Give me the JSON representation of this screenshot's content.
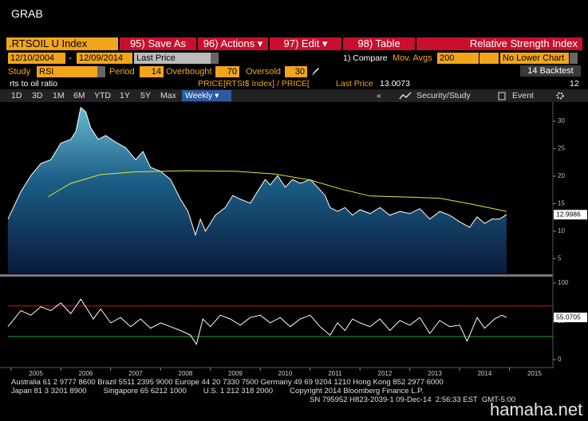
{
  "header": {
    "title": "GRAB",
    "security": ".RTSOIL U Index",
    "buttons": [
      "95) Save As",
      "96) Actions ▾",
      "97) Edit ▾",
      "98) Table"
    ],
    "study_title": "Relative Strength Index",
    "start_date": "12/10/2004",
    "date_sep": "-",
    "end_date": "12/09/2014",
    "price_field": "Last Price",
    "compare": "1) Compare",
    "mov_avgs_label": "Mov. Avgs",
    "mov_avgs": 200,
    "lower_chart": "No Lower Chart",
    "study_label": "Study",
    "study": "RSI",
    "period_label": "Period",
    "period": 14,
    "overbought_label": "Overbought",
    "overbought": 70,
    "oversold_label": "Oversold",
    "oversold": 30,
    "backtest": "14 Backtest",
    "description": "rts to oil ratio",
    "formula": "PRICE[RTSI$ Index] / PRICE[",
    "last_price_label": "Last Price",
    "last_price": 13.0073,
    "count": 12
  },
  "toolbar": {
    "ranges": [
      "1D",
      "3D",
      "1M",
      "6M",
      "YTD",
      "1Y",
      "5Y",
      "Max"
    ],
    "frequency": "Weekly ▾",
    "collapse": "«",
    "security_study": "Security/Study",
    "event": "Event"
  },
  "chart_data": [
    {
      "type": "line",
      "xlim": [
        2004.94,
        2015.87
      ],
      "ylim": [
        2.3,
        33.2
      ],
      "yticks": [
        5,
        10,
        15,
        20,
        25,
        30
      ],
      "last_label": 12.9986,
      "series": [
        {
          "color": "#ffffff",
          "fill_area": true,
          "x": [
            2004.94,
            2005.2,
            2005.4,
            2005.6,
            2005.8,
            2006.0,
            2006.2,
            2006.3,
            2006.4,
            2006.5,
            2006.6,
            2006.75,
            2006.9,
            2007.1,
            2007.3,
            2007.5,
            2007.65,
            2007.8,
            2008.0,
            2008.2,
            2008.4,
            2008.55,
            2008.7,
            2008.8,
            2008.9,
            2009.1,
            2009.3,
            2009.45,
            2009.6,
            2009.8,
            2010.0,
            2010.1,
            2010.2,
            2010.35,
            2010.5,
            2010.65,
            2010.8,
            2011.0,
            2011.15,
            2011.3,
            2011.4,
            2011.55,
            2011.7,
            2011.85,
            2012.0,
            2012.2,
            2012.4,
            2012.6,
            2012.8,
            2013.0,
            2013.2,
            2013.4,
            2013.6,
            2013.8,
            2014.0,
            2014.2,
            2014.35,
            2014.5,
            2014.65,
            2014.8,
            2014.94
          ],
          "values": [
            12.2,
            17.2,
            20.1,
            22.3,
            23,
            26,
            26.7,
            28.1,
            32.5,
            31.7,
            28.8,
            26.7,
            27.4,
            26.2,
            25.2,
            23,
            24.5,
            21.6,
            20.9,
            19.4,
            15.8,
            13.6,
            9.3,
            12.2,
            10,
            12.9,
            14.3,
            16.5,
            15.8,
            15.1,
            18,
            19.4,
            18.4,
            20.1,
            18,
            19.4,
            18.7,
            19.4,
            18,
            16.5,
            14.3,
            13.6,
            14.3,
            12.9,
            13.9,
            13.2,
            14.3,
            12.9,
            13.6,
            13.2,
            14.1,
            12.2,
            13.6,
            12.9,
            11.7,
            10.7,
            12.6,
            11.4,
            12.2,
            12.2,
            13
          ]
        },
        {
          "color": "#e6e62e",
          "fill_area": false,
          "x": [
            2005.75,
            2006.2,
            2006.8,
            2007.5,
            2008.5,
            2009.5,
            2010.3,
            2011.0,
            2011.6,
            2012.2,
            2013.0,
            2013.6,
            2014.2,
            2014.94
          ],
          "values": [
            16.3,
            18.7,
            20.3,
            20.8,
            21,
            20.9,
            20.4,
            19.3,
            17.7,
            16.4,
            16.2,
            16,
            15,
            13.6
          ]
        }
      ]
    },
    {
      "type": "line",
      "xlim": [
        2004.94,
        2015.87
      ],
      "ylim": [
        -9.4,
        107.3
      ],
      "yticks": [
        0,
        50,
        100
      ],
      "last_label": 55.0705,
      "xticks": [
        2005,
        2006,
        2007,
        2008,
        2009,
        2010,
        2011,
        2012,
        2013,
        2014,
        2015
      ],
      "series": [
        {
          "color": "#ffffff",
          "fill_area": false,
          "x": [
            2004.94,
            2005.2,
            2005.4,
            2005.6,
            2005.8,
            2006.0,
            2006.2,
            2006.4,
            2006.5,
            2006.65,
            2006.8,
            2007.0,
            2007.2,
            2007.4,
            2007.6,
            2007.8,
            2008.0,
            2008.2,
            2008.4,
            2008.6,
            2008.72,
            2008.85,
            2009.0,
            2009.2,
            2009.4,
            2009.6,
            2009.8,
            2010.0,
            2010.2,
            2010.4,
            2010.6,
            2010.8,
            2011.0,
            2011.2,
            2011.4,
            2011.55,
            2011.7,
            2011.85,
            2012.0,
            2012.2,
            2012.4,
            2012.6,
            2012.8,
            2013.0,
            2013.2,
            2013.4,
            2013.6,
            2013.8,
            2014.0,
            2014.15,
            2014.35,
            2014.5,
            2014.7,
            2014.85,
            2014.94
          ],
          "values": [
            43,
            64,
            58,
            69,
            64,
            74,
            60,
            79,
            69,
            53,
            66,
            48,
            55,
            43,
            53,
            41,
            48,
            43,
            38,
            32,
            20,
            53,
            43,
            58,
            53,
            45,
            55,
            58,
            48,
            55,
            43,
            53,
            58,
            43,
            32,
            48,
            38,
            53,
            48,
            43,
            53,
            38,
            51,
            45,
            55,
            34,
            51,
            43,
            45,
            24,
            55,
            41,
            53,
            58,
            55
          ]
        }
      ]
    }
  ],
  "footer": {
    "lines": [
      "Australia 61 2 9777 8600 Brazil 5511 2395 9000 Europe 44 20 7330 7500 Germany 49 69 9204 1210 Hong Kong 852 2977 6000",
      "Japan 81 3 3201 8900        Singapore 65 6212 1000        U.S. 1 212 318 2000        Copyright 2014 Bloomberg Finance L.P.",
      "SN 795952 H823-2039-1 09-Dec-14  2:56:33 EST  GMT-5:00"
    ],
    "watermark": "hamaha.net"
  }
}
